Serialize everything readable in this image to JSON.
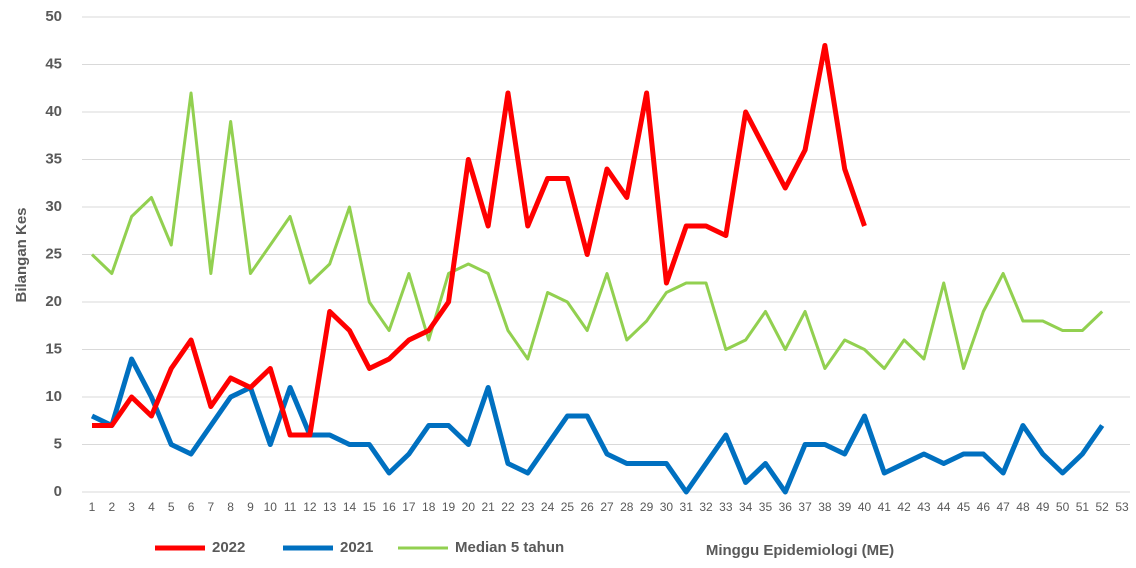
{
  "chart_data": {
    "type": "line",
    "y_label": "Bilangan Kes",
    "x_label": "Minggu Epidemiologi (ME)",
    "x": [
      1,
      2,
      3,
      4,
      5,
      6,
      7,
      8,
      9,
      10,
      11,
      12,
      13,
      14,
      15,
      16,
      17,
      18,
      19,
      20,
      21,
      22,
      23,
      24,
      25,
      26,
      27,
      28,
      29,
      30,
      31,
      32,
      33,
      34,
      35,
      36,
      37,
      38,
      39,
      40,
      41,
      42,
      43,
      44,
      45,
      46,
      47,
      48,
      49,
      50,
      51,
      52
    ],
    "xlim": [
      1,
      53
    ],
    "xticks": [
      1,
      2,
      3,
      4,
      5,
      6,
      7,
      8,
      9,
      10,
      11,
      12,
      13,
      14,
      15,
      16,
      17,
      18,
      19,
      20,
      21,
      22,
      23,
      24,
      25,
      26,
      27,
      28,
      29,
      30,
      31,
      32,
      33,
      34,
      35,
      36,
      37,
      38,
      39,
      40,
      41,
      42,
      43,
      44,
      45,
      46,
      47,
      48,
      49,
      50,
      51,
      52,
      53
    ],
    "ylim": [
      0,
      50
    ],
    "yticks": [
      0,
      5,
      10,
      15,
      20,
      25,
      30,
      35,
      40,
      45,
      50
    ],
    "grid": true,
    "legend": "bottom-left",
    "series": [
      {
        "name": "2022",
        "color": "#ff0000",
        "width": 5,
        "values": [
          7,
          7,
          10,
          8,
          13,
          16,
          9,
          12,
          11,
          13,
          6,
          6,
          19,
          17,
          13,
          14,
          16,
          17,
          20,
          35,
          28,
          42,
          28,
          33,
          33,
          25,
          34,
          31,
          42,
          22,
          28,
          28,
          27,
          40,
          36,
          32,
          36,
          47,
          34,
          28,
          null,
          null,
          null,
          null,
          null,
          null,
          null,
          null,
          null,
          null,
          null,
          null
        ]
      },
      {
        "name": "2021",
        "color": "#0070c0",
        "width": 5,
        "values": [
          8,
          7,
          14,
          10,
          5,
          4,
          7,
          10,
          11,
          5,
          11,
          6,
          6,
          5,
          5,
          2,
          4,
          7,
          7,
          5,
          11,
          3,
          2,
          5,
          8,
          8,
          4,
          3,
          3,
          3,
          0,
          3,
          6,
          1,
          3,
          0,
          5,
          5,
          4,
          8,
          2,
          3,
          4,
          3,
          4,
          4,
          2,
          7,
          4,
          2,
          4,
          7
        ]
      },
      {
        "name": "Median 5 tahun",
        "color": "#92d050",
        "width": 3,
        "values": [
          25,
          23,
          29,
          31,
          26,
          42,
          23,
          39,
          23,
          26,
          29,
          22,
          24,
          30,
          20,
          17,
          23,
          16,
          23,
          24,
          23,
          17,
          14,
          21,
          20,
          17,
          23,
          16,
          18,
          21,
          22,
          22,
          15,
          16,
          19,
          15,
          19,
          13,
          16,
          15,
          13,
          16,
          14,
          22,
          13,
          19,
          23,
          18,
          18,
          17,
          17,
          19
        ]
      }
    ]
  }
}
